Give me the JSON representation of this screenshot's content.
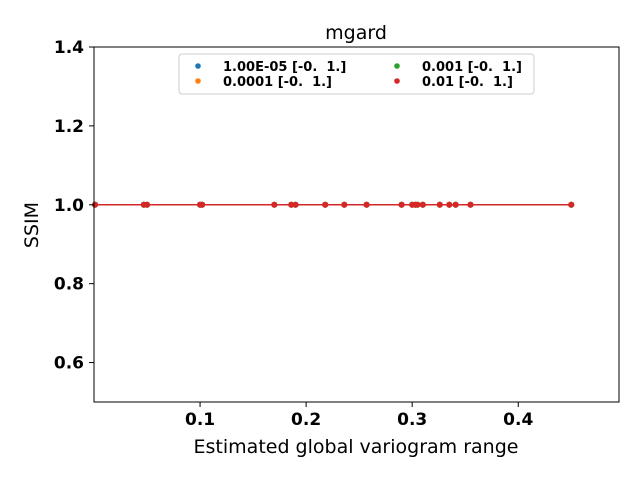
{
  "chart_data": {
    "type": "scatter",
    "title": "mgard",
    "xlabel": "Estimated global variogram range",
    "ylabel": "SSIM",
    "xlim": [
      0.0,
      0.495
    ],
    "ylim": [
      0.5,
      1.4
    ],
    "xticks": [
      0.1,
      0.2,
      0.3,
      0.4
    ],
    "xtick_labels": [
      "0.1",
      "0.2",
      "0.3",
      "0.4"
    ],
    "yticks": [
      0.6,
      0.8,
      1.0,
      1.2,
      1.4
    ],
    "ytick_labels": [
      "0.6",
      "0.8",
      "1.0",
      "1.2",
      "1.4"
    ],
    "grid": false,
    "legend": {
      "placement": "upper-center",
      "columns": 2
    },
    "x": [
      0.001,
      0.047,
      0.05,
      0.1,
      0.102,
      0.17,
      0.186,
      0.19,
      0.218,
      0.236,
      0.257,
      0.29,
      0.3,
      0.303,
      0.305,
      0.31,
      0.326,
      0.335,
      0.341,
      0.355,
      0.45
    ],
    "series": [
      {
        "name": "1.00E-05 [-0.  1.]",
        "color": "#1f77b4",
        "y": [
          1,
          1,
          1,
          1,
          1,
          1,
          1,
          1,
          1,
          1,
          1,
          1,
          1,
          1,
          1,
          1,
          1,
          1,
          1,
          1,
          1
        ]
      },
      {
        "name": "0.0001 [-0.  1.]",
        "color": "#ff7f0e",
        "y": [
          1,
          1,
          1,
          1,
          1,
          1,
          1,
          1,
          1,
          1,
          1,
          1,
          1,
          1,
          1,
          1,
          1,
          1,
          1,
          1,
          1
        ]
      },
      {
        "name": "0.001 [-0.  1.]",
        "color": "#2ca02c",
        "y": [
          1,
          1,
          1,
          1,
          1,
          1,
          1,
          1,
          1,
          1,
          1,
          1,
          1,
          1,
          1,
          1,
          1,
          1,
          1,
          1,
          1
        ]
      },
      {
        "name": "0.01 [-0.  1.]",
        "color": "#d62728",
        "y": [
          1,
          1,
          1,
          1,
          1,
          1,
          1,
          1,
          1,
          1,
          1,
          1,
          1,
          1,
          1,
          1,
          1,
          1,
          1,
          1,
          1
        ]
      }
    ]
  }
}
